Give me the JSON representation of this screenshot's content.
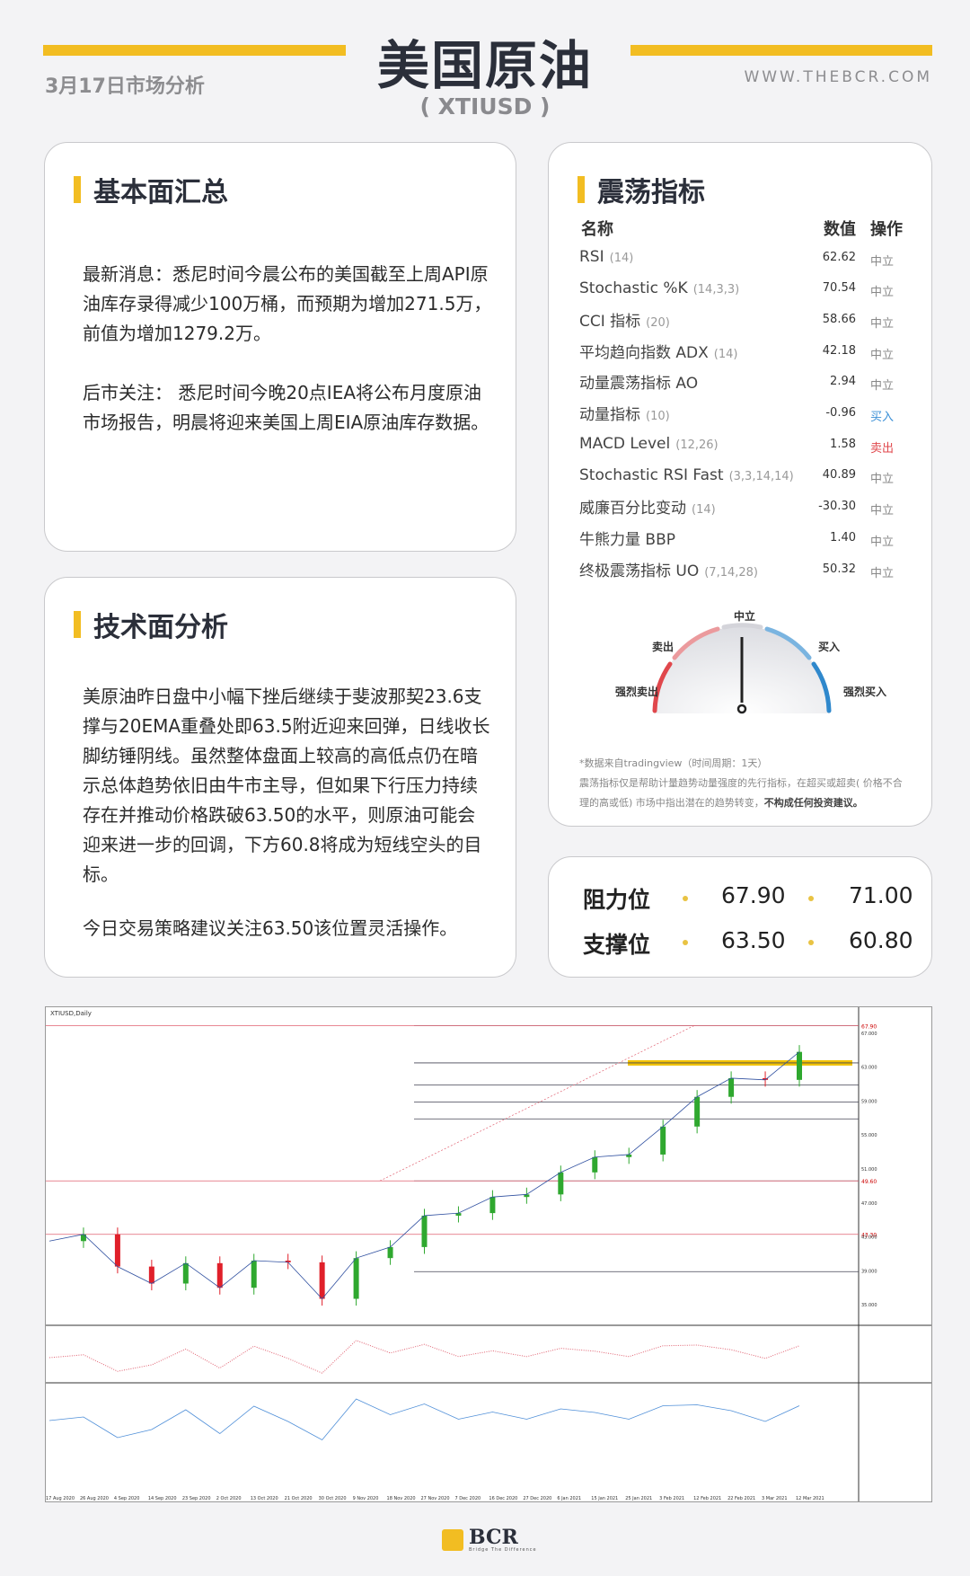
{
  "header": {
    "title": "美国原油",
    "symbol": "( XTIUSD )",
    "date": "3月17日市场分析",
    "url": "WWW.THEBCR.COM"
  },
  "fundamentals": {
    "title": "基本面汇总",
    "p1": "最新消息：悉尼时间今晨公布的美国截至上周API原油库存录得减少100万桶，而预期为增加271.5万，前值为增加1279.2万。",
    "p2": "后市关注： 悉尼时间今晚20点IEA将公布月度原油市场报告，明晨将迎来美国上周EIA原油库存数据。"
  },
  "technical": {
    "title": "技术面分析",
    "p1": "美原油昨日盘中小幅下挫后继续于斐波那契23.6支撑与20EMA重叠处即63.5附近迎来回弹，日线收长脚纺锤阴线。虽然整体盘面上较高的高低点仍在暗示总体趋势依旧由牛市主导，但如果下行压力持续存在并推动价格跌破63.50的水平，则原油可能会迎来进一步的回调，下方60.8将成为短线空头的目标。",
    "p2": "今日交易策略建议关注63.50该位置灵活操作。"
  },
  "oscillators": {
    "title": "震荡指标",
    "col_name": "名称",
    "col_value": "数值",
    "col_action": "操作",
    "rows": [
      {
        "name": "RSI",
        "params": "(14)",
        "value": "62.62",
        "action": "中立"
      },
      {
        "name": "Stochastic %K",
        "params": "(14,3,3)",
        "value": "70.54",
        "action": "中立"
      },
      {
        "name": "CCI 指标",
        "params": "(20)",
        "value": "58.66",
        "action": "中立"
      },
      {
        "name": "平均趋向指数 ADX",
        "params": "(14)",
        "value": "42.18",
        "action": "中立"
      },
      {
        "name": "动量震荡指标 AO",
        "params": "",
        "value": "2.94",
        "action": "中立"
      },
      {
        "name": "动量指标",
        "params": "(10)",
        "value": "-0.96",
        "action": "买入"
      },
      {
        "name": "MACD Level",
        "params": "(12,26)",
        "value": "1.58",
        "action": "卖出"
      },
      {
        "name": "Stochastic RSI Fast",
        "params": "(3,3,14,14)",
        "value": "40.89",
        "action": "中立"
      },
      {
        "name": "威廉百分比变动",
        "params": "(14)",
        "value": "-30.30",
        "action": "中立"
      },
      {
        "name": "牛熊力量 BBP",
        "params": "",
        "value": "1.40",
        "action": "中立"
      },
      {
        "name": "终极震荡指标 UO",
        "params": "(7,14,28)",
        "value": "50.32",
        "action": "中立"
      }
    ],
    "colors": {
      "neutral": "#888888",
      "buy": "#3a8fd6",
      "sell": "#e0474c"
    },
    "gauge": {
      "strong_sell": "强烈卖出",
      "sell": "卖出",
      "neutral": "中立",
      "buy": "买入",
      "strong_buy": "强烈买入",
      "reading": "中立"
    },
    "source": "*数据来自tradingview（时间周期：1天）",
    "disclaimer": "震荡指标仅是帮助计量趋势动量强度的先行指标，在超买或超卖( 价格不合理的高或低) 市场中指出潜在的趋势转变，",
    "disclaimer_bold": "不构成任何投资建议。"
  },
  "levels": {
    "resistance_label": "阻力位",
    "support_label": "支撑位",
    "resistance": [
      "67.90",
      "71.00"
    ],
    "support": [
      "63.50",
      "60.80"
    ]
  },
  "chart_data": {
    "type": "line",
    "title": "XTIUSD,Daily",
    "ylim": [
      33,
      69
    ],
    "x": [
      "17 Aug 2020",
      "26 Aug 2020",
      "4 Sep 2020",
      "14 Sep 2020",
      "23 Sep 2020",
      "2 Oct 2020",
      "13 Oct 2020",
      "21 Oct 2020",
      "30 Oct 2020",
      "9 Nov 2020",
      "18 Nov 2020",
      "27 Nov 2020",
      "7 Dec 2020",
      "16 Dec 2020",
      "27 Dec 2020",
      "6 Jan 2021",
      "15 Jan 2021",
      "25 Jan 2021",
      "3 Feb 2021",
      "12 Feb 2021",
      "22 Feb 2021",
      "3 Mar 2021",
      "12 Mar 2021"
    ],
    "close": [
      42.5,
      43.3,
      39.5,
      37.5,
      39.9,
      37.0,
      40.2,
      40.0,
      35.7,
      40.5,
      41.8,
      45.5,
      45.8,
      47.7,
      48.0,
      50.6,
      52.4,
      52.7,
      56.0,
      59.5,
      61.7,
      61.5,
      64.8
    ],
    "fib_levels": [
      67.9,
      63.5,
      60.9,
      58.9,
      56.9,
      49.6,
      38.9
    ],
    "highlight_level": 63.5,
    "red_lines": [
      67.9,
      49.6,
      43.3
    ],
    "colors": {
      "up": "#2fa82f",
      "down": "#e0202a",
      "highlight": "#f2c200"
    }
  },
  "footer": {
    "logo": "BCR",
    "tagline": "Bridge The Difference"
  }
}
